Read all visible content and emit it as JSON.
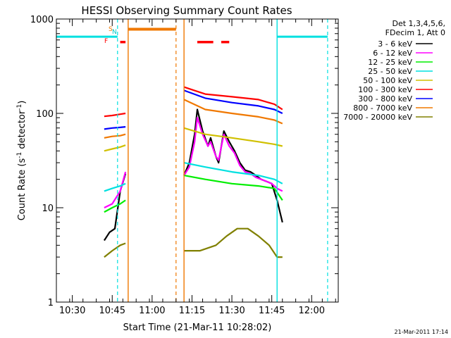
{
  "chart_data": {
    "type": "line",
    "title": "HESSI Observing Summary Count Rates",
    "xlabel": "Start Time (21-Mar-11 10:28:02)",
    "ylabel": "Count Rate (s⁻¹ detector⁻¹)",
    "ylabel_main": "Count Rate (s",
    "ylabel_sup1": "-1",
    "ylabel_mid": " detector",
    "ylabel_sup2": "-1",
    "ylabel_end": ")",
    "xlim": [
      "10:24",
      "12:10"
    ],
    "ylim": [
      1,
      1000
    ],
    "y_scale": "log",
    "grid": false,
    "legend_placement": "right, outside plot",
    "x_ticks": [
      "10:30",
      "10:45",
      "11:00",
      "11:15",
      "11:30",
      "11:45",
      "12:00"
    ],
    "y_ticks": [
      "1",
      "10",
      "100",
      "1000"
    ],
    "legend_header": [
      "Det 1,3,4,5,6,",
      "FDecim 1, Att 0"
    ],
    "timestamp": "21-Mar-2011 17:14",
    "flags": {
      "S": "S",
      "N": "N",
      "F": "F"
    },
    "colors": {
      "saa": "#f07800",
      "night": "#00e0e0",
      "flare": "#ff0000"
    },
    "series": [
      {
        "name": "3 - 6 keV",
        "color": "#000000",
        "segments": [
          {
            "x": [
              "10:42",
              "10:44",
              "10:46",
              "10:48",
              "10:50"
            ],
            "y": [
              4.5,
              5.5,
              6,
              15,
              23
            ]
          },
          {
            "x": [
              "11:12",
              "11:14",
              "11:16",
              "11:17",
              "11:19",
              "11:21",
              "11:22",
              "11:24",
              "11:25",
              "11:27",
              "11:29",
              "11:31",
              "11:33",
              "11:35",
              "11:37",
              "11:39",
              "11:41",
              "11:43",
              "11:45",
              "11:47",
              "11:49"
            ],
            "y": [
              22,
              30,
              60,
              110,
              65,
              45,
              55,
              35,
              30,
              65,
              50,
              40,
              30,
              25,
              24,
              22,
              20,
              19,
              18,
              12,
              7
            ]
          }
        ]
      },
      {
        "name": "6 - 12 keV",
        "color": "#ff00ff",
        "segments": [
          {
            "x": [
              "10:42",
              "10:45",
              "10:48",
              "10:50"
            ],
            "y": [
              10,
              11,
              15,
              24
            ]
          },
          {
            "x": [
              "11:12",
              "11:14",
              "11:16",
              "11:17",
              "11:19",
              "11:21",
              "11:22",
              "11:24",
              "11:25",
              "11:27",
              "11:29",
              "11:31",
              "11:33",
              "11:35",
              "11:37",
              "11:39",
              "11:41",
              "11:43",
              "11:45",
              "11:47",
              "11:49"
            ],
            "y": [
              22,
              27,
              50,
              90,
              60,
              45,
              50,
              35,
              32,
              60,
              45,
              38,
              28,
              24,
              23,
              21,
              20,
              19,
              18,
              16,
              15
            ]
          }
        ]
      },
      {
        "name": "12 - 25 keV",
        "color": "#00ee00",
        "segments": [
          {
            "x": [
              "10:42",
              "10:45",
              "10:48",
              "10:50"
            ],
            "y": [
              9,
              10,
              11,
              12
            ]
          },
          {
            "x": [
              "11:12",
              "11:20",
              "11:30",
              "11:40",
              "11:46",
              "11:49"
            ],
            "y": [
              22,
              20,
              18,
              17,
              16,
              12
            ]
          }
        ]
      },
      {
        "name": "25 - 50 keV",
        "color": "#00e0e0",
        "segments": [
          {
            "x": [
              "10:42",
              "10:45",
              "10:48",
              "10:50"
            ],
            "y": [
              15,
              16,
              17,
              18
            ]
          },
          {
            "x": [
              "11:12",
              "11:20",
              "11:30",
              "11:40",
              "11:46",
              "11:49"
            ],
            "y": [
              30,
              27,
              24,
              22,
              20,
              18
            ]
          }
        ]
      },
      {
        "name": "50 - 100 keV",
        "color": "#d0c000",
        "segments": [
          {
            "x": [
              "10:42",
              "10:45",
              "10:48",
              "10:50"
            ],
            "y": [
              40,
              42,
              44,
              46
            ]
          },
          {
            "x": [
              "11:12",
              "11:20",
              "11:30",
              "11:40",
              "11:46",
              "11:49"
            ],
            "y": [
              70,
              60,
              55,
              50,
              47,
              45
            ]
          }
        ]
      },
      {
        "name": "100 - 300 keV",
        "color": "#ff0000",
        "segments": [
          {
            "x": [
              "10:42",
              "10:45",
              "10:48",
              "10:50"
            ],
            "y": [
              93,
              95,
              98,
              100
            ]
          },
          {
            "x": [
              "11:12",
              "11:20",
              "11:30",
              "11:40",
              "11:46",
              "11:49"
            ],
            "y": [
              190,
              160,
              150,
              140,
              125,
              110
            ]
          }
        ]
      },
      {
        "name": "300 - 800 keV",
        "color": "#0000ff",
        "segments": [
          {
            "x": [
              "10:42",
              "10:45",
              "10:48",
              "10:50"
            ],
            "y": [
              68,
              70,
              71,
              72
            ]
          },
          {
            "x": [
              "11:12",
              "11:20",
              "11:30",
              "11:40",
              "11:46",
              "11:49"
            ],
            "y": [
              175,
              145,
              130,
              120,
              110,
              100
            ]
          }
        ]
      },
      {
        "name": "800 - 7000 keV",
        "color": "#f07800",
        "segments": [
          {
            "x": [
              "10:42",
              "10:45",
              "10:48",
              "10:50"
            ],
            "y": [
              55,
              57,
              58,
              60
            ]
          },
          {
            "x": [
              "11:12",
              "11:20",
              "11:30",
              "11:40",
              "11:46",
              "11:49"
            ],
            "y": [
              140,
              110,
              100,
              92,
              85,
              78
            ]
          }
        ]
      },
      {
        "name": "7000 - 20000 keV",
        "color": "#808000",
        "segments": [
          {
            "x": [
              "10:42",
              "10:45",
              "10:48",
              "10:50"
            ],
            "y": [
              3,
              3.5,
              4,
              4.2
            ]
          },
          {
            "x": [
              "11:12",
              "11:18",
              "11:24",
              "11:28",
              "11:32",
              "11:36",
              "11:40",
              "11:44",
              "11:47",
              "11:49"
            ],
            "y": [
              3.5,
              3.5,
              4,
              5,
              6,
              6,
              5,
              4,
              3,
              3
            ]
          }
        ]
      }
    ],
    "attenuator_state": {
      "x": [
        "10:24",
        "10:47"
      ],
      "y": 650
    },
    "attenuator_state_2": {
      "x": [
        "11:47",
        "12:06"
      ],
      "y": 650
    },
    "saa_bar": {
      "x": [
        "10:51",
        "11:09"
      ],
      "y": 780
    },
    "flare_bars": {
      "x": [
        [
          "10:48",
          "10:50"
        ],
        [
          "11:17",
          "11:23"
        ],
        [
          "11:26",
          "11:29"
        ]
      ],
      "y": 570
    }
  }
}
